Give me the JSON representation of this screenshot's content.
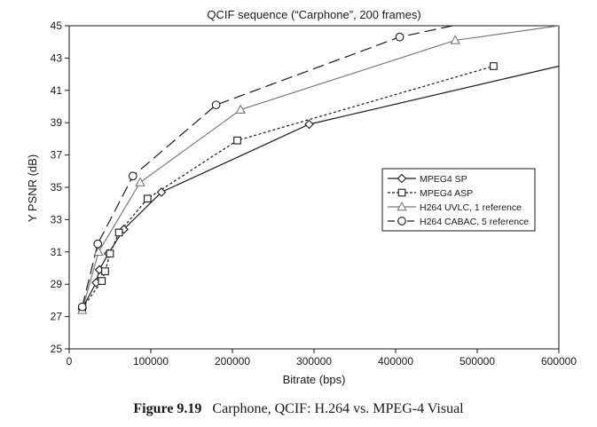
{
  "chart_data": {
    "type": "line",
    "title": "QCIF sequence (“Carphone”, 200 frames)",
    "xlabel": "Bitrate (bps)",
    "ylabel": "Y PSNR (dB)",
    "xlim": [
      0,
      600000
    ],
    "ylim": [
      25,
      45
    ],
    "xticks": [
      0,
      100000,
      200000,
      300000,
      400000,
      500000,
      600000
    ],
    "yticks": [
      25,
      27,
      29,
      31,
      33,
      35,
      37,
      39,
      41,
      43,
      45
    ],
    "grid": false,
    "legend_position": "right",
    "series": [
      {
        "name": "MPEG4 SP",
        "marker": "diamond",
        "color": "#1a1a1a",
        "dash": "solid",
        "points": [
          [
            16000,
            27.5
          ],
          [
            33000,
            29.1
          ],
          [
            37000,
            29.9
          ],
          [
            48000,
            30.9
          ],
          [
            67000,
            32.4
          ],
          [
            113000,
            34.7
          ],
          [
            294000,
            38.9
          ],
          [
            600000,
            42.5
          ]
        ]
      },
      {
        "name": "MPEG4 ASP",
        "marker": "square",
        "color": "#1a1a1a",
        "dash": "short",
        "points": [
          [
            16000,
            27.5
          ],
          [
            40000,
            29.2
          ],
          [
            44000,
            29.8
          ],
          [
            50000,
            30.9
          ],
          [
            61000,
            32.2
          ],
          [
            96000,
            34.3
          ],
          [
            206000,
            37.9
          ],
          [
            520000,
            42.5
          ]
        ]
      },
      {
        "name": "H264 UVLC, 1 reference",
        "marker": "triangle",
        "color": "#7a7a7a",
        "dash": "solid",
        "points": [
          [
            16000,
            27.4
          ],
          [
            36000,
            31.0
          ],
          [
            87000,
            35.3
          ],
          [
            210000,
            39.8
          ],
          [
            473000,
            44.1
          ],
          [
            600000,
            45.0
          ]
        ]
      },
      {
        "name": "H264 CABAC, 5 reference",
        "marker": "circle",
        "color": "#1a1a1a",
        "dash": "long",
        "points": [
          [
            16000,
            27.6
          ],
          [
            35000,
            31.5
          ],
          [
            78000,
            35.7
          ],
          [
            180000,
            40.1
          ],
          [
            405000,
            44.3
          ],
          [
            470000,
            45.0
          ]
        ]
      }
    ]
  },
  "caption": {
    "label": "Figure 9.19",
    "text": "Carphone, QCIF: H.264 vs. MPEG-4 Visual"
  }
}
